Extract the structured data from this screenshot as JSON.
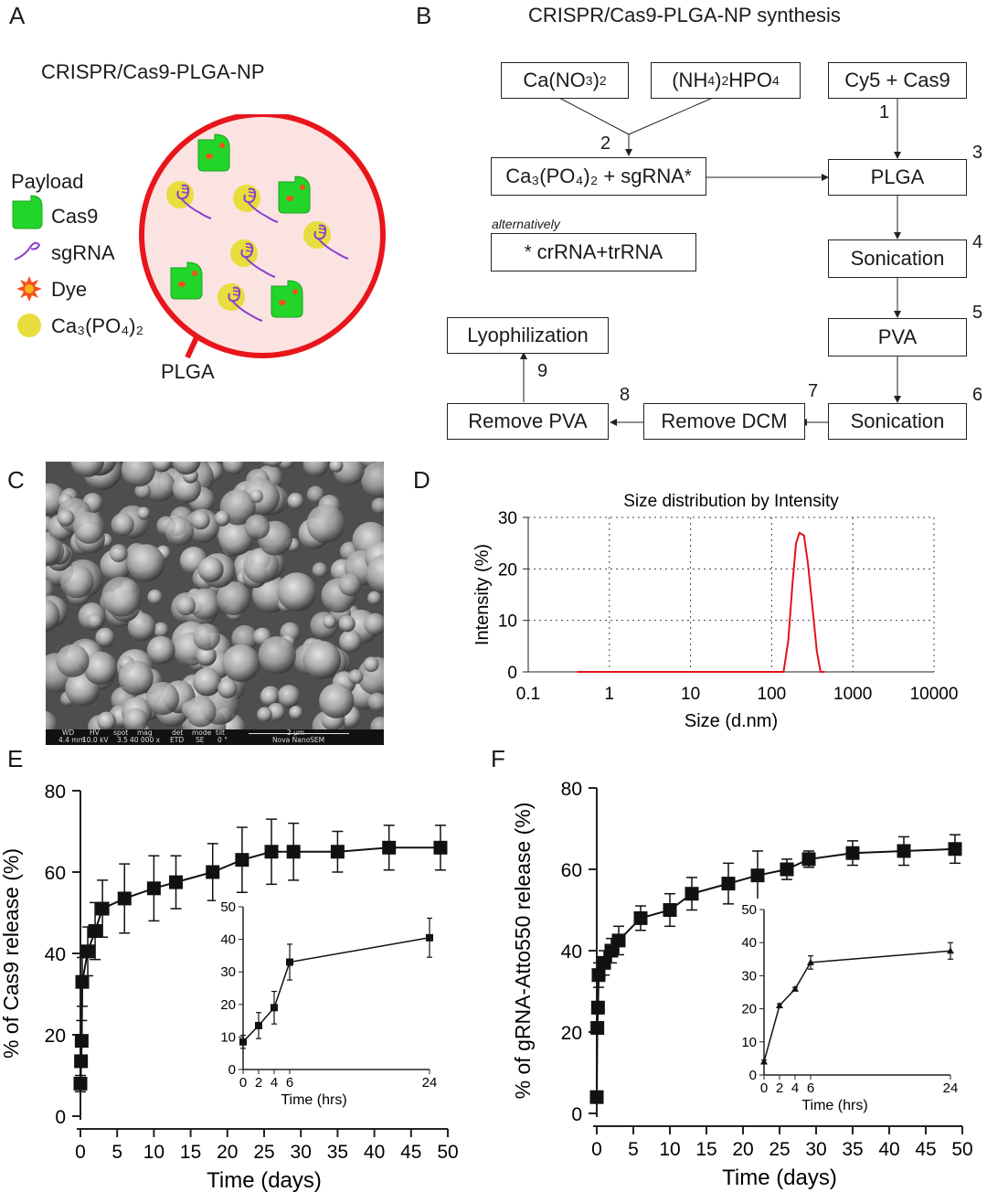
{
  "panelA": {
    "letter": "A",
    "title": "CRISPR/Cas9-PLGA-NP",
    "payload_title": "Payload",
    "legend": [
      {
        "label": "Cas9",
        "icon": "cas9-protein-icon"
      },
      {
        "label": "sgRNA",
        "icon": "sgrna-icon"
      },
      {
        "label": "Dye",
        "icon": "dye-icon"
      },
      {
        "label": "Ca₃(PO₄)₂",
        "icon": "calcium-phosphate-icon"
      }
    ],
    "particle_label": "PLGA",
    "colors": {
      "shell": "#e8161c",
      "interior": "#fbe3e1",
      "cas9": "#22d629",
      "dye": "#f5501d",
      "capo4": "#e7dd3c",
      "sgrna": "#8a3fd1"
    }
  },
  "panelB": {
    "letter": "B",
    "title": "CRISPR/Cas9-PLGA-NP synthesis",
    "boxes": {
      "cano3": "Ca(NO",
      "cano3_sub1": "3",
      "cano3_close": ")",
      "cano3_sub2": "2",
      "nh4": "(NH",
      "nh4_sub1": "4",
      "nh4_mid": ")",
      "nh4_sub2": "2",
      "nh4_end": "HPO",
      "nh4_sub3": "4",
      "cy5": "Cy5 + Cas9",
      "capo": "Ca₃(PO₄)₂ + sgRNA",
      "capo_star": "*",
      "plga": "PLGA",
      "alt_note": "alternatively",
      "alt_star": "*",
      "alt": "crRNA+trRNA",
      "sonication1": "Sonication",
      "pva": "PVA",
      "sonication2": "Sonication",
      "remove_dcm": "Remove DCM",
      "remove_pva": "Remove PVA",
      "lyophilization": "Lyophilization"
    },
    "steps": [
      "1",
      "2",
      "3",
      "4",
      "5",
      "6",
      "7",
      "8",
      "9"
    ]
  },
  "panelC": {
    "letter": "C",
    "infobar": {
      "wd_label": "WD",
      "wd": "4.4 mm",
      "hv_label": "HV",
      "hv": "10.0 kV",
      "spot_label": "spot",
      "spot": "3.5",
      "mag_label": "mag",
      "mag": "40 000 x",
      "det_label": "det",
      "det": "ETD",
      "mode_label": "mode",
      "mode": "SE",
      "tilt_label": "tilt",
      "tilt": "0 °",
      "scale": "2 µm",
      "instrument": "Nova NanoSEM"
    }
  },
  "panelD": {
    "letter": "D",
    "chart_data": {
      "type": "line",
      "title": "Size distribution by Intensity",
      "xlabel": "Size (d.nm)",
      "ylabel": "Intensity (%)",
      "xscale": "log",
      "xlim": [
        0.1,
        10000
      ],
      "ylim": [
        0,
        30
      ],
      "xticks": [
        "0.1",
        "1",
        "10",
        "100",
        "1000",
        "10000"
      ],
      "yticks": [
        "0",
        "10",
        "20",
        "30"
      ],
      "grid": true,
      "color": "#e0131a",
      "x": [
        0.4,
        1,
        10,
        100,
        140,
        160,
        180,
        200,
        220,
        250,
        280,
        320,
        360,
        400,
        450
      ],
      "y": [
        0,
        0,
        0,
        0,
        0,
        6,
        17,
        25,
        27,
        26.5,
        21,
        12,
        4,
        0,
        0
      ]
    }
  },
  "panelE": {
    "letter": "E",
    "chart_data": {
      "type": "line",
      "xlabel": "Time (days)",
      "ylabel": "% of Cas9 release (%)",
      "xlim": [
        0,
        50
      ],
      "ylim": [
        0,
        80
      ],
      "xticks": [
        "0",
        "5",
        "10",
        "15",
        "20",
        "25",
        "30",
        "35",
        "40",
        "45",
        "50"
      ],
      "yticks": [
        "0",
        "20",
        "40",
        "60",
        "80"
      ],
      "x": [
        0,
        0.08,
        0.17,
        0.25,
        1,
        2,
        3,
        6,
        10,
        13,
        18,
        22,
        26,
        29,
        35,
        42,
        49
      ],
      "y": [
        8,
        13.5,
        18.5,
        33,
        40.5,
        45.5,
        51,
        53.5,
        56,
        57.5,
        60,
        63,
        65,
        65,
        65,
        66,
        66
      ],
      "err": [
        2,
        4,
        5,
        6,
        6,
        7,
        7,
        8.5,
        8,
        6.5,
        7,
        8,
        8,
        7,
        5,
        5.5,
        5.5
      ],
      "inset": {
        "xlabel": "Time (hrs)",
        "xlim": [
          0,
          24
        ],
        "ylim": [
          0,
          50
        ],
        "xticks": [
          "0",
          "2",
          "4",
          "6",
          "24"
        ],
        "yticks": [
          "0",
          "10",
          "20",
          "30",
          "40",
          "50"
        ],
        "x": [
          0,
          2,
          4,
          6,
          24
        ],
        "y": [
          8.5,
          13.5,
          19,
          33,
          40.5
        ],
        "err": [
          2,
          4,
          5,
          5.5,
          6
        ]
      }
    }
  },
  "panelF": {
    "letter": "F",
    "chart_data": {
      "type": "line",
      "xlabel": "Time (days)",
      "ylabel": "% of gRNA-Atto550 release (%)",
      "xlim": [
        0,
        50
      ],
      "ylim": [
        0,
        80
      ],
      "xticks": [
        "0",
        "5",
        "10",
        "15",
        "20",
        "25",
        "30",
        "35",
        "40",
        "45",
        "50"
      ],
      "yticks": [
        "0",
        "20",
        "40",
        "60",
        "80"
      ],
      "x": [
        0,
        0.08,
        0.17,
        0.25,
        1,
        2,
        3,
        6,
        10,
        13,
        18,
        22,
        26,
        29,
        35,
        42,
        49
      ],
      "y": [
        4,
        21,
        26,
        34,
        37,
        40,
        42.5,
        48,
        50,
        54,
        56.5,
        58.5,
        60,
        62.5,
        64,
        64.5,
        65
      ],
      "err": [
        0.5,
        1,
        1.5,
        3,
        3,
        3,
        3.5,
        3,
        4,
        4,
        5,
        6,
        2.5,
        2,
        3,
        3.5,
        3.5
      ],
      "inset": {
        "xlabel": "Time (hrs)",
        "xlim": [
          0,
          24
        ],
        "ylim": [
          0,
          50
        ],
        "xticks": [
          "0",
          "2",
          "4",
          "6",
          "24"
        ],
        "yticks": [
          "0",
          "10",
          "20",
          "30",
          "40",
          "50"
        ],
        "x": [
          0,
          2,
          4,
          6,
          24
        ],
        "y": [
          4,
          21,
          26,
          34,
          37.5
        ],
        "err": [
          0.5,
          0.5,
          0.5,
          2,
          2.5
        ]
      }
    }
  }
}
